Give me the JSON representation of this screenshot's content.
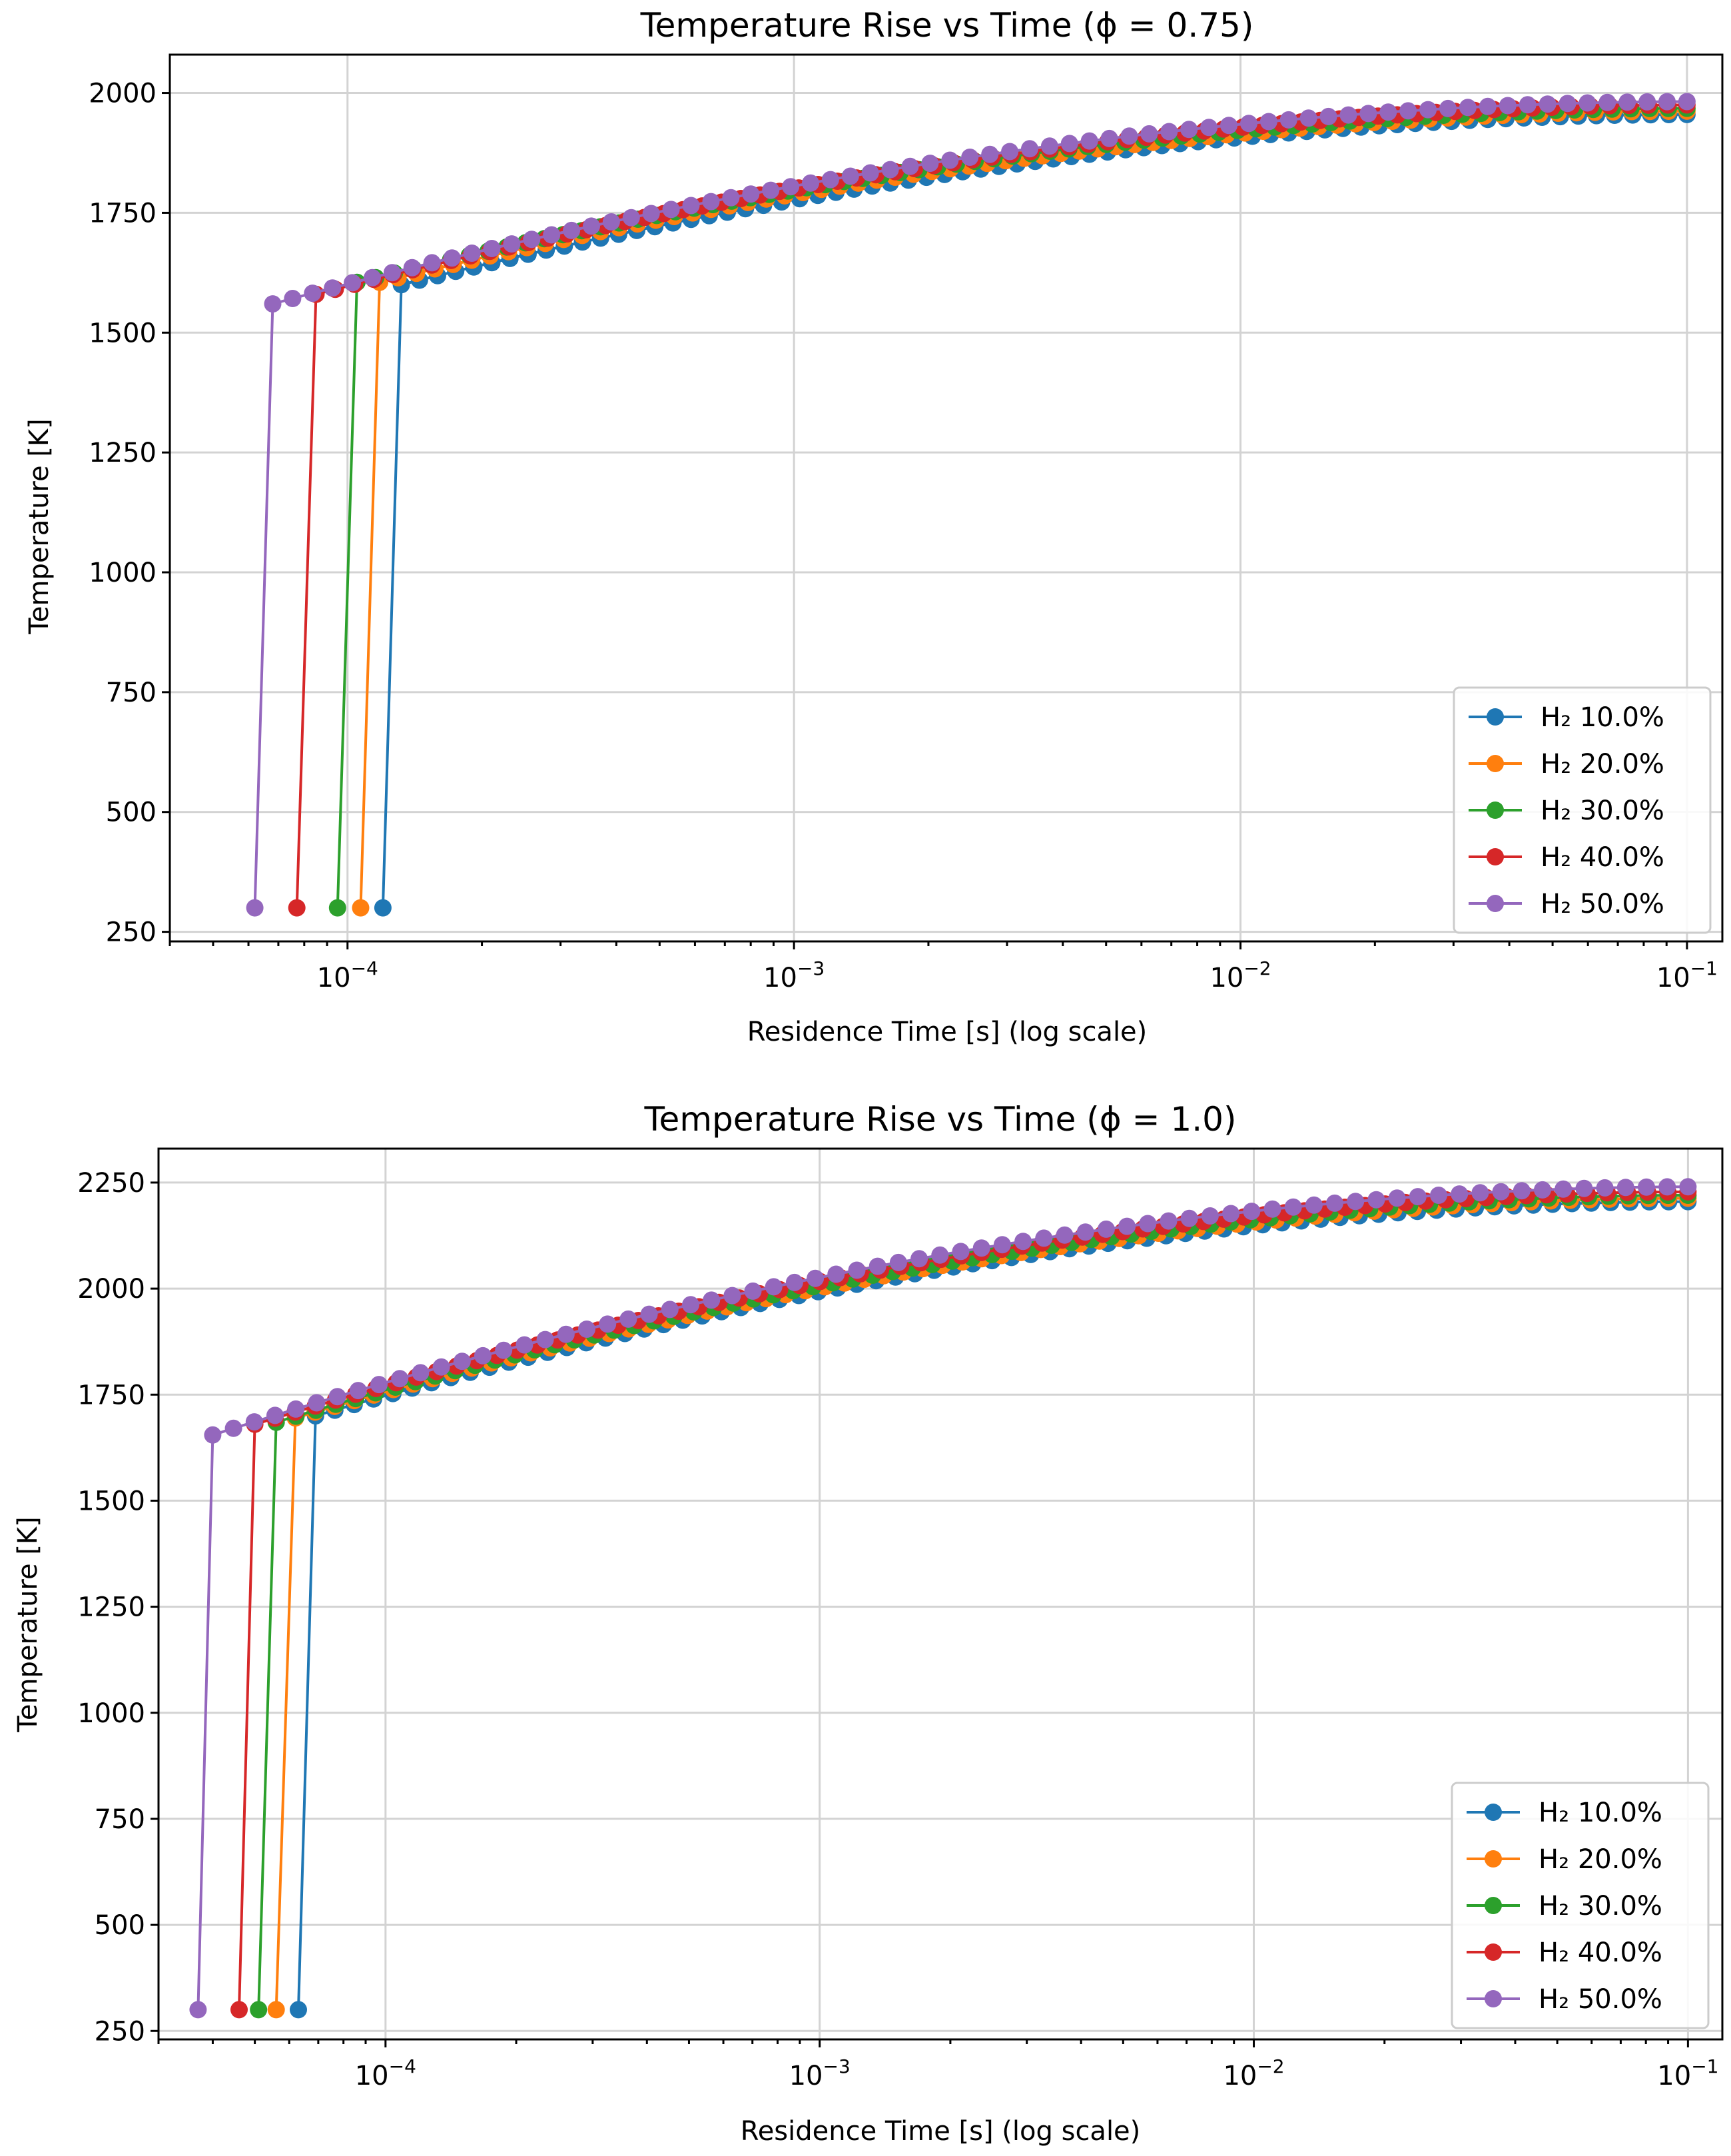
{
  "chart_data": [
    {
      "type": "line",
      "title": "Temperature Rise vs Time (ϕ = 0.75)",
      "xlabel": "Residence Time [s] (log scale)",
      "ylabel": "Temperature [K]",
      "xscale": "log",
      "xlim": [
        4e-05,
        0.12
      ],
      "ylim": [
        230,
        2080
      ],
      "yticks": [
        250,
        500,
        750,
        1000,
        1250,
        1500,
        1750,
        2000
      ],
      "xticks": [
        {
          "base": "10",
          "exp": "−4",
          "value": 0.0001
        },
        {
          "base": "10",
          "exp": "−3",
          "value": 0.001
        },
        {
          "base": "10",
          "exp": "−2",
          "value": 0.01
        },
        {
          "base": "10",
          "exp": "−1",
          "value": 0.1
        }
      ],
      "grid": true,
      "legend_position": "lower right",
      "marker": "circle",
      "series": [
        {
          "name": "H₂ 10.0%",
          "color": "#1f77b4",
          "ignition_time": 0.000132,
          "t_start": 0.00012,
          "t_end": 0.1,
          "T_initial": 300,
          "T_ignition": 1600,
          "T_final": 1955
        },
        {
          "name": "H₂ 20.0%",
          "color": "#ff7f0e",
          "ignition_time": 0.000118,
          "t_start": 0.000107,
          "t_end": 0.1,
          "T_initial": 300,
          "T_ignition": 1605,
          "T_final": 1962
        },
        {
          "name": "H₂ 30.0%",
          "color": "#2ca02c",
          "ignition_time": 0.000105,
          "t_start": 9.5e-05,
          "t_end": 0.1,
          "T_initial": 300,
          "T_ignition": 1605,
          "T_final": 1968
        },
        {
          "name": "H₂ 40.0%",
          "color": "#d62728",
          "ignition_time": 8.5e-05,
          "t_start": 7.7e-05,
          "t_end": 0.1,
          "T_initial": 300,
          "T_ignition": 1580,
          "T_final": 1975
        },
        {
          "name": "H₂ 50.0%",
          "color": "#9467bd",
          "ignition_time": 6.8e-05,
          "t_start": 6.2e-05,
          "t_end": 0.1,
          "T_initial": 300,
          "T_ignition": 1560,
          "T_final": 1982
        }
      ]
    },
    {
      "type": "line",
      "title": "Temperature Rise vs Time (ϕ = 1.0)",
      "xlabel": "Residence Time [s] (log scale)",
      "ylabel": "Temperature [K]",
      "xscale": "log",
      "xlim": [
        3e-05,
        0.12
      ],
      "ylim": [
        230,
        2330
      ],
      "yticks": [
        250,
        500,
        750,
        1000,
        1250,
        1500,
        1750,
        2000,
        2250
      ],
      "xticks": [
        {
          "base": "10",
          "exp": "−4",
          "value": 0.0001
        },
        {
          "base": "10",
          "exp": "−3",
          "value": 0.001
        },
        {
          "base": "10",
          "exp": "−2",
          "value": 0.01
        },
        {
          "base": "10",
          "exp": "−1",
          "value": 0.1
        }
      ],
      "grid": true,
      "legend_position": "lower right",
      "marker": "circle",
      "series": [
        {
          "name": "H₂ 10.0%",
          "color": "#1f77b4",
          "ignition_time": 6.9e-05,
          "t_start": 6.3e-05,
          "t_end": 0.1,
          "T_initial": 300,
          "T_ignition": 1700,
          "T_final": 2205
        },
        {
          "name": "H₂ 20.0%",
          "color": "#ff7f0e",
          "ignition_time": 6.2e-05,
          "t_start": 5.6e-05,
          "t_end": 0.1,
          "T_initial": 300,
          "T_ignition": 1695,
          "T_final": 2213
        },
        {
          "name": "H₂ 30.0%",
          "color": "#2ca02c",
          "ignition_time": 5.6e-05,
          "t_start": 5.1e-05,
          "t_end": 0.1,
          "T_initial": 300,
          "T_ignition": 1685,
          "T_final": 2220
        },
        {
          "name": "H₂ 40.0%",
          "color": "#d62728",
          "ignition_time": 5e-05,
          "t_start": 4.6e-05,
          "t_end": 0.1,
          "T_initial": 300,
          "T_ignition": 1680,
          "T_final": 2228
        },
        {
          "name": "H₂ 50.0%",
          "color": "#9467bd",
          "ignition_time": 4e-05,
          "t_start": 3.7e-05,
          "t_end": 0.1,
          "T_initial": 300,
          "T_ignition": 1655,
          "T_final": 2240
        }
      ]
    }
  ]
}
